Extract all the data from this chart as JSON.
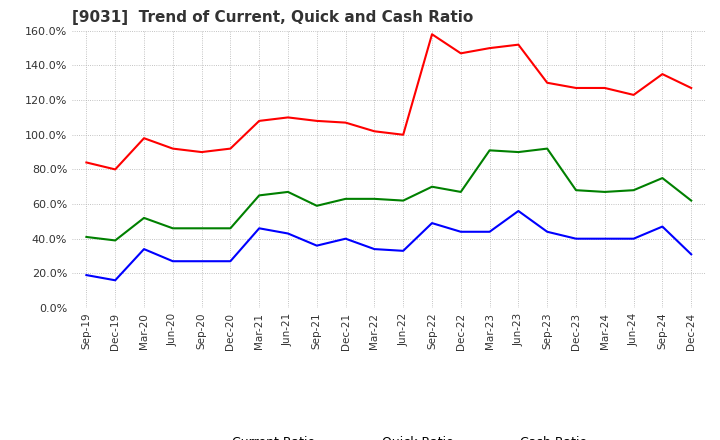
{
  "title": "[9031]  Trend of Current, Quick and Cash Ratio",
  "x_labels": [
    "Sep-19",
    "Dec-19",
    "Mar-20",
    "Jun-20",
    "Sep-20",
    "Dec-20",
    "Mar-21",
    "Jun-21",
    "Sep-21",
    "Dec-21",
    "Mar-22",
    "Jun-22",
    "Sep-22",
    "Dec-22",
    "Mar-23",
    "Jun-23",
    "Sep-23",
    "Dec-23",
    "Mar-24",
    "Jun-24",
    "Sep-24",
    "Dec-24"
  ],
  "current_ratio": [
    0.84,
    0.8,
    0.98,
    0.92,
    0.9,
    0.92,
    1.08,
    1.1,
    1.08,
    1.07,
    1.02,
    1.0,
    1.58,
    1.47,
    1.5,
    1.52,
    1.3,
    1.27,
    1.27,
    1.23,
    1.35,
    1.27
  ],
  "quick_ratio": [
    0.41,
    0.39,
    0.52,
    0.46,
    0.46,
    0.46,
    0.65,
    0.67,
    0.59,
    0.63,
    0.63,
    0.62,
    0.7,
    0.67,
    0.91,
    0.9,
    0.92,
    0.68,
    0.67,
    0.68,
    0.75,
    0.62
  ],
  "cash_ratio": [
    0.19,
    0.16,
    0.34,
    0.27,
    0.27,
    0.27,
    0.46,
    0.43,
    0.36,
    0.4,
    0.34,
    0.33,
    0.49,
    0.44,
    0.44,
    0.56,
    0.44,
    0.4,
    0.4,
    0.4,
    0.47,
    0.31
  ],
  "current_color": "#ff0000",
  "quick_color": "#008000",
  "cash_color": "#0000ff",
  "ylim": [
    0.0,
    1.6
  ],
  "yticks": [
    0.0,
    0.2,
    0.4,
    0.6,
    0.8,
    1.0,
    1.2,
    1.4,
    1.6
  ],
  "background_color": "#ffffff",
  "grid_color": "#b0b0b0"
}
